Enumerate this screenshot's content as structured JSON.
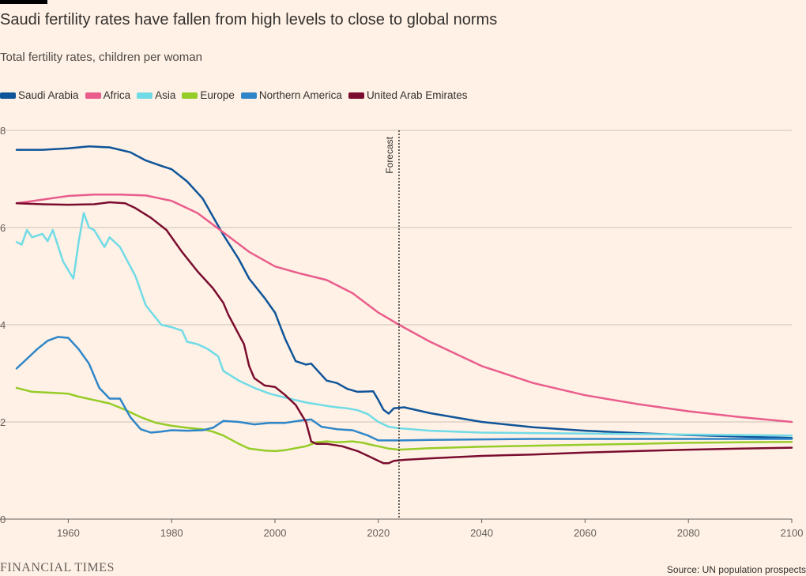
{
  "header": {
    "title": "Saudi fertility rates have fallen from high levels to close to global norms",
    "subtitle": "Total fertility rates, children per woman"
  },
  "footer": {
    "brand": "FINANCIAL TIMES",
    "source": "Source: UN population prospects"
  },
  "chart_data": {
    "type": "line",
    "title": "Saudi fertility rates have fallen from high levels to close to global norms",
    "subtitle": "Total fertility rates, children per woman",
    "xlabel": "",
    "ylabel": "",
    "xlim": [
      1950,
      2100
    ],
    "ylim": [
      0,
      8
    ],
    "x_ticks": [
      1960,
      1980,
      2000,
      2020,
      2040,
      2060,
      2080,
      2100
    ],
    "y_ticks": [
      0,
      2,
      4,
      6,
      8
    ],
    "grid": "horizontal",
    "legend": "top-left",
    "annotation": {
      "label": "Forecast",
      "x": 2024
    },
    "series": [
      {
        "name": "Saudi Arabia",
        "color": "#0f5499",
        "points": [
          [
            1950,
            7.6
          ],
          [
            1955,
            7.6
          ],
          [
            1960,
            7.63
          ],
          [
            1964,
            7.67
          ],
          [
            1968,
            7.65
          ],
          [
            1972,
            7.55
          ],
          [
            1975,
            7.38
          ],
          [
            1978,
            7.27
          ],
          [
            1980,
            7.2
          ],
          [
            1983,
            6.95
          ],
          [
            1986,
            6.6
          ],
          [
            1990,
            5.85
          ],
          [
            1993,
            5.35
          ],
          [
            1995,
            4.95
          ],
          [
            1998,
            4.55
          ],
          [
            2000,
            4.25
          ],
          [
            2002,
            3.7
          ],
          [
            2004,
            3.25
          ],
          [
            2006,
            3.18
          ],
          [
            2007,
            3.2
          ],
          [
            2010,
            2.85
          ],
          [
            2012,
            2.8
          ],
          [
            2014,
            2.68
          ],
          [
            2016,
            2.62
          ],
          [
            2019,
            2.63
          ],
          [
            2020,
            2.45
          ],
          [
            2021,
            2.25
          ],
          [
            2022,
            2.17
          ],
          [
            2023,
            2.28
          ],
          [
            2025,
            2.3
          ],
          [
            2030,
            2.18
          ],
          [
            2040,
            2.0
          ],
          [
            2050,
            1.89
          ],
          [
            2060,
            1.82
          ],
          [
            2070,
            1.77
          ],
          [
            2080,
            1.73
          ],
          [
            2090,
            1.7
          ],
          [
            2100,
            1.67
          ]
        ]
      },
      {
        "name": "Africa",
        "color": "#e95d8c",
        "points": [
          [
            1950,
            6.5
          ],
          [
            1960,
            6.65
          ],
          [
            1965,
            6.68
          ],
          [
            1970,
            6.68
          ],
          [
            1975,
            6.66
          ],
          [
            1980,
            6.55
          ],
          [
            1985,
            6.3
          ],
          [
            1990,
            5.9
          ],
          [
            1995,
            5.5
          ],
          [
            2000,
            5.2
          ],
          [
            2005,
            5.05
          ],
          [
            2010,
            4.92
          ],
          [
            2015,
            4.65
          ],
          [
            2020,
            4.25
          ],
          [
            2024,
            4.0
          ],
          [
            2030,
            3.65
          ],
          [
            2040,
            3.15
          ],
          [
            2050,
            2.8
          ],
          [
            2060,
            2.55
          ],
          [
            2070,
            2.37
          ],
          [
            2080,
            2.22
          ],
          [
            2090,
            2.1
          ],
          [
            2100,
            2.0
          ]
        ]
      },
      {
        "name": "Asia",
        "color": "#70dbe6",
        "points": [
          [
            1950,
            5.7
          ],
          [
            1951,
            5.65
          ],
          [
            1952,
            5.95
          ],
          [
            1953,
            5.8
          ],
          [
            1955,
            5.87
          ],
          [
            1956,
            5.72
          ],
          [
            1957,
            5.95
          ],
          [
            1959,
            5.3
          ],
          [
            1961,
            4.95
          ],
          [
            1962,
            5.7
          ],
          [
            1963,
            6.3
          ],
          [
            1964,
            6.0
          ],
          [
            1965,
            5.95
          ],
          [
            1967,
            5.6
          ],
          [
            1968,
            5.8
          ],
          [
            1970,
            5.6
          ],
          [
            1973,
            5.0
          ],
          [
            1975,
            4.4
          ],
          [
            1978,
            4.0
          ],
          [
            1980,
            3.95
          ],
          [
            1982,
            3.88
          ],
          [
            1983,
            3.65
          ],
          [
            1985,
            3.6
          ],
          [
            1987,
            3.5
          ],
          [
            1989,
            3.35
          ],
          [
            1990,
            3.05
          ],
          [
            1993,
            2.85
          ],
          [
            1996,
            2.7
          ],
          [
            1999,
            2.58
          ],
          [
            2002,
            2.5
          ],
          [
            2006,
            2.4
          ],
          [
            2010,
            2.33
          ],
          [
            2012,
            2.3
          ],
          [
            2014,
            2.28
          ],
          [
            2016,
            2.24
          ],
          [
            2018,
            2.16
          ],
          [
            2020,
            2.0
          ],
          [
            2022,
            1.9
          ],
          [
            2024,
            1.87
          ],
          [
            2030,
            1.82
          ],
          [
            2040,
            1.78
          ],
          [
            2050,
            1.77
          ],
          [
            2060,
            1.76
          ],
          [
            2070,
            1.75
          ],
          [
            2080,
            1.74
          ],
          [
            2090,
            1.73
          ],
          [
            2100,
            1.72
          ]
        ]
      },
      {
        "name": "Europe",
        "color": "#96cc28",
        "points": [
          [
            1950,
            2.7
          ],
          [
            1953,
            2.62
          ],
          [
            1957,
            2.6
          ],
          [
            1960,
            2.58
          ],
          [
            1962,
            2.52
          ],
          [
            1965,
            2.45
          ],
          [
            1968,
            2.38
          ],
          [
            1971,
            2.25
          ],
          [
            1974,
            2.1
          ],
          [
            1977,
            1.98
          ],
          [
            1980,
            1.92
          ],
          [
            1983,
            1.88
          ],
          [
            1986,
            1.85
          ],
          [
            1988,
            1.8
          ],
          [
            1990,
            1.72
          ],
          [
            1993,
            1.55
          ],
          [
            1995,
            1.45
          ],
          [
            1998,
            1.41
          ],
          [
            2000,
            1.4
          ],
          [
            2002,
            1.42
          ],
          [
            2004,
            1.46
          ],
          [
            2006,
            1.5
          ],
          [
            2008,
            1.58
          ],
          [
            2010,
            1.6
          ],
          [
            2012,
            1.58
          ],
          [
            2015,
            1.6
          ],
          [
            2017,
            1.57
          ],
          [
            2019,
            1.52
          ],
          [
            2020,
            1.5
          ],
          [
            2022,
            1.45
          ],
          [
            2024,
            1.43
          ],
          [
            2030,
            1.46
          ],
          [
            2040,
            1.49
          ],
          [
            2050,
            1.51
          ],
          [
            2060,
            1.53
          ],
          [
            2070,
            1.55
          ],
          [
            2080,
            1.57
          ],
          [
            2090,
            1.58
          ],
          [
            2100,
            1.59
          ]
        ]
      },
      {
        "name": "Northern America",
        "color": "#2e86c8",
        "points": [
          [
            1950,
            3.1
          ],
          [
            1952,
            3.3
          ],
          [
            1954,
            3.5
          ],
          [
            1956,
            3.67
          ],
          [
            1958,
            3.75
          ],
          [
            1960,
            3.73
          ],
          [
            1962,
            3.5
          ],
          [
            1964,
            3.2
          ],
          [
            1966,
            2.7
          ],
          [
            1968,
            2.48
          ],
          [
            1970,
            2.48
          ],
          [
            1972,
            2.1
          ],
          [
            1974,
            1.85
          ],
          [
            1976,
            1.78
          ],
          [
            1978,
            1.8
          ],
          [
            1980,
            1.83
          ],
          [
            1983,
            1.82
          ],
          [
            1986,
            1.83
          ],
          [
            1988,
            1.88
          ],
          [
            1990,
            2.02
          ],
          [
            1993,
            2.0
          ],
          [
            1996,
            1.95
          ],
          [
            1999,
            1.98
          ],
          [
            2002,
            1.98
          ],
          [
            2005,
            2.03
          ],
          [
            2007,
            2.05
          ],
          [
            2009,
            1.9
          ],
          [
            2012,
            1.85
          ],
          [
            2015,
            1.83
          ],
          [
            2018,
            1.72
          ],
          [
            2020,
            1.62
          ],
          [
            2022,
            1.62
          ],
          [
            2024,
            1.62
          ],
          [
            2030,
            1.63
          ],
          [
            2040,
            1.64
          ],
          [
            2050,
            1.65
          ],
          [
            2060,
            1.65
          ],
          [
            2070,
            1.65
          ],
          [
            2080,
            1.65
          ],
          [
            2090,
            1.65
          ],
          [
            2100,
            1.65
          ]
        ]
      },
      {
        "name": "United Arab Emirates",
        "color": "#7a0d2f",
        "points": [
          [
            1950,
            6.5
          ],
          [
            1955,
            6.48
          ],
          [
            1960,
            6.47
          ],
          [
            1965,
            6.48
          ],
          [
            1968,
            6.52
          ],
          [
            1971,
            6.5
          ],
          [
            1973,
            6.4
          ],
          [
            1976,
            6.2
          ],
          [
            1979,
            5.95
          ],
          [
            1982,
            5.5
          ],
          [
            1985,
            5.1
          ],
          [
            1988,
            4.75
          ],
          [
            1990,
            4.45
          ],
          [
            1991,
            4.2
          ],
          [
            1992,
            4.0
          ],
          [
            1993,
            3.8
          ],
          [
            1994,
            3.6
          ],
          [
            1995,
            3.15
          ],
          [
            1996,
            2.9
          ],
          [
            1998,
            2.75
          ],
          [
            2000,
            2.72
          ],
          [
            2002,
            2.55
          ],
          [
            2004,
            2.35
          ],
          [
            2006,
            2.0
          ],
          [
            2007,
            1.6
          ],
          [
            2008,
            1.55
          ],
          [
            2010,
            1.55
          ],
          [
            2013,
            1.5
          ],
          [
            2016,
            1.4
          ],
          [
            2018,
            1.3
          ],
          [
            2019,
            1.25
          ],
          [
            2020,
            1.2
          ],
          [
            2021,
            1.15
          ],
          [
            2022,
            1.15
          ],
          [
            2023,
            1.2
          ],
          [
            2025,
            1.22
          ],
          [
            2030,
            1.25
          ],
          [
            2040,
            1.3
          ],
          [
            2050,
            1.33
          ],
          [
            2060,
            1.37
          ],
          [
            2070,
            1.4
          ],
          [
            2080,
            1.43
          ],
          [
            2090,
            1.45
          ],
          [
            2100,
            1.47
          ]
        ]
      }
    ]
  }
}
